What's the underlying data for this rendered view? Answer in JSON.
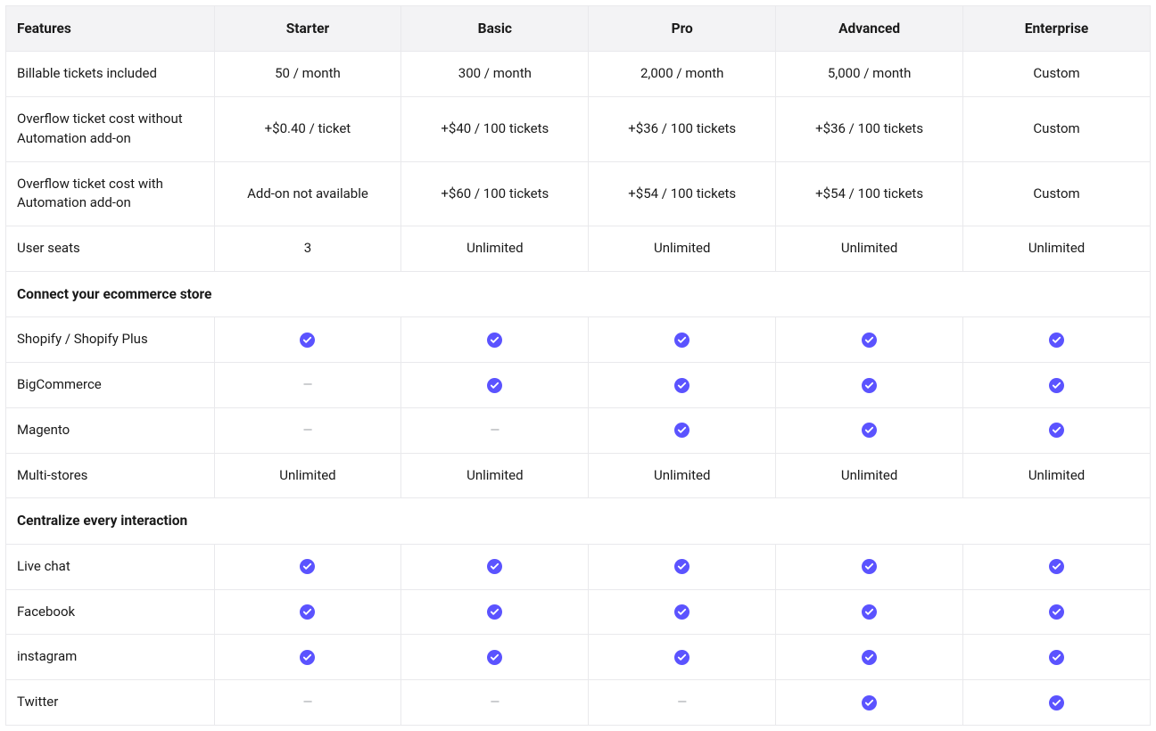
{
  "type": "table",
  "palette": {
    "header_bg": "#f3f3f5",
    "border": "#e9e9ec",
    "text": "#1a1a1a",
    "dash": "#9ca0a6",
    "check_bg": "#5b53ff",
    "check_fg": "#ffffff",
    "page_bg": "#ffffff"
  },
  "columns": [
    {
      "key": "feature",
      "label": "Features"
    },
    {
      "key": "starter",
      "label": "Starter"
    },
    {
      "key": "basic",
      "label": "Basic"
    },
    {
      "key": "pro",
      "label": "Pro"
    },
    {
      "key": "advanced",
      "label": "Advanced"
    },
    {
      "key": "enterprise",
      "label": "Enterprise"
    }
  ],
  "rows": [
    {
      "type": "data",
      "feature": "Billable tickets included",
      "cells": [
        "50 / month",
        "300 / month",
        "2,000 / month",
        "5,000 / month",
        "Custom"
      ]
    },
    {
      "type": "data",
      "feature": "Overflow ticket cost without Automation add-on",
      "cells": [
        "+$0.40 / ticket",
        "+$40 / 100 tickets",
        "+$36 / 100 tickets",
        "+$36 / 100 tickets",
        "Custom"
      ]
    },
    {
      "type": "data",
      "feature": "Overflow ticket cost with Automation add-on",
      "cells": [
        "Add-on not available",
        "+$60 / 100 tickets",
        "+$54 / 100 tickets",
        "+$54 / 100 tickets",
        "Custom"
      ]
    },
    {
      "type": "data",
      "feature": "User seats",
      "cells": [
        "3",
        "Unlimited",
        "Unlimited",
        "Unlimited",
        "Unlimited"
      ]
    },
    {
      "type": "section",
      "title": "Connect your ecommerce store"
    },
    {
      "type": "data",
      "feature": "Shopify / Shopify Plus",
      "cells": [
        "check",
        "check",
        "check",
        "check",
        "check"
      ]
    },
    {
      "type": "data",
      "feature": "BigCommerce",
      "cells": [
        "dash",
        "check",
        "check",
        "check",
        "check"
      ]
    },
    {
      "type": "data",
      "feature": "Magento",
      "cells": [
        "dash",
        "dash",
        "check",
        "check",
        "check"
      ]
    },
    {
      "type": "data",
      "feature": "Multi-stores",
      "cells": [
        "Unlimited",
        "Unlimited",
        "Unlimited",
        "Unlimited",
        "Unlimited"
      ]
    },
    {
      "type": "section",
      "title": "Centralize every interaction"
    },
    {
      "type": "data",
      "feature": "Live chat",
      "cells": [
        "check",
        "check",
        "check",
        "check",
        "check"
      ]
    },
    {
      "type": "data",
      "feature": "Facebook",
      "cells": [
        "check",
        "check",
        "check",
        "check",
        "check"
      ]
    },
    {
      "type": "data",
      "feature": "instagram",
      "cells": [
        "check",
        "check",
        "check",
        "check",
        "check"
      ]
    },
    {
      "type": "data",
      "feature": "Twitter",
      "cells": [
        "dash",
        "dash",
        "dash",
        "check",
        "check"
      ]
    }
  ]
}
